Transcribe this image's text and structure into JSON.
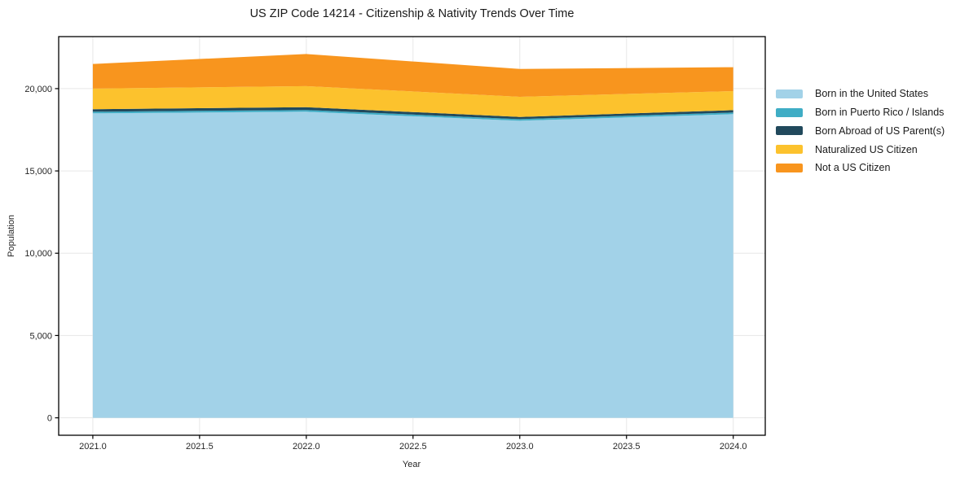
{
  "chart_data": {
    "type": "area",
    "stacked": true,
    "title": "US ZIP Code 14214 - Citizenship & Nativity Trends Over Time",
    "xlabel": "Year",
    "ylabel": "Population",
    "x": [
      2021,
      2022,
      2023,
      2024
    ],
    "series": [
      {
        "name": "Born in the United States",
        "color": "#a2d2e8",
        "values": [
          18500,
          18600,
          18050,
          18450
        ]
      },
      {
        "name": "Born in Puerto Rico / Islands",
        "color": "#3fadc5",
        "values": [
          100,
          100,
          100,
          100
        ]
      },
      {
        "name": "Born Abroad of US Parent(s)",
        "color": "#21495c",
        "values": [
          150,
          170,
          130,
          140
        ]
      },
      {
        "name": "Naturalized US Citizen",
        "color": "#fcc22d",
        "values": [
          1250,
          1280,
          1220,
          1160
        ]
      },
      {
        "name": "Not a US Citizen",
        "color": "#f8951e",
        "values": [
          1500,
          1950,
          1700,
          1450
        ]
      }
    ],
    "totals": [
      21500,
      22100,
      21200,
      21300
    ],
    "xticks": {
      "values": [
        2021.0,
        2021.5,
        2022.0,
        2022.5,
        2023.0,
        2023.5,
        2024.0
      ],
      "labels": [
        "2021.0",
        "2021.5",
        "2022.0",
        "2022.5",
        "2023.0",
        "2023.5",
        "2024.0"
      ]
    },
    "yticks": {
      "values": [
        0,
        5000,
        10000,
        15000,
        20000
      ],
      "labels": [
        "0",
        "5,000",
        "10,000",
        "15,000",
        "20,000"
      ]
    },
    "xlim": [
      2020.84,
      2024.15
    ],
    "ylim": [
      -1060,
      23160
    ],
    "grid": true,
    "legend_position": "right",
    "colors": {
      "grid": "#e7e7e7",
      "spine": "#000000",
      "background": "#ffffff"
    }
  }
}
